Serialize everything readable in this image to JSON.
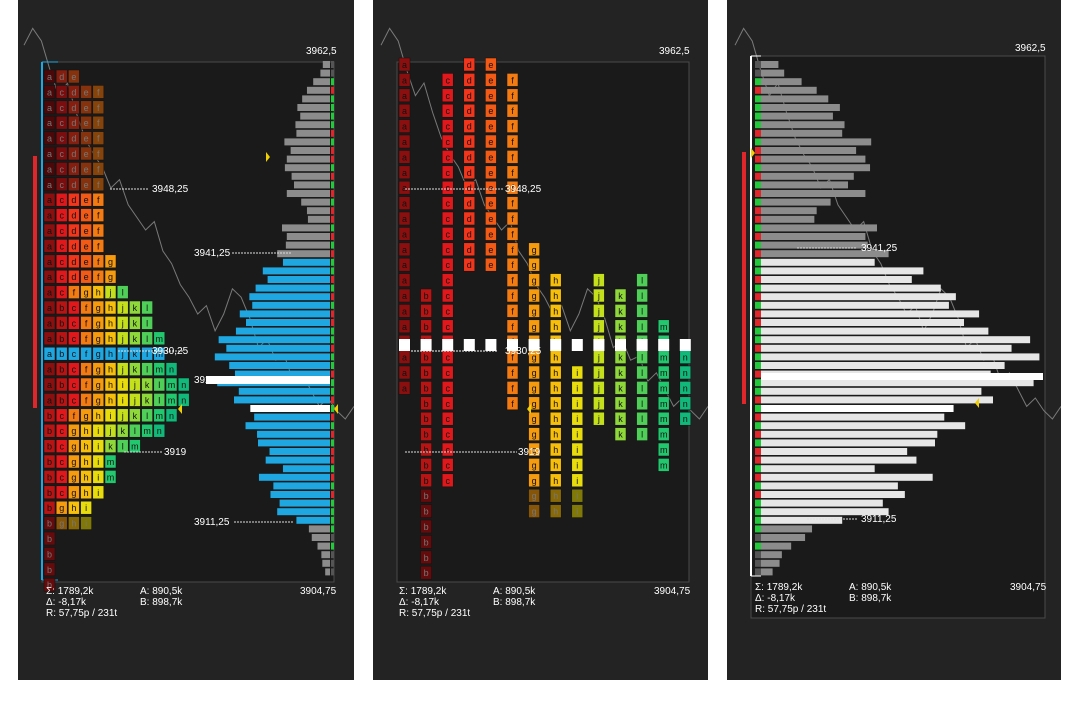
{
  "colors": {
    "background": "#232323",
    "chart_bg": "#1a1a1a",
    "value_area": "#1ea7e1",
    "poc": "#ffffff",
    "profile_gray": "#8c8c8c",
    "profile_light": "#e6e6e6",
    "buy": "#22c93a",
    "sell": "#e0262b",
    "initial_balance": "#e0262b",
    "price_line": "#9a9a9a"
  },
  "price_labels": {
    "top": "3962,5",
    "bottom": "3904,75",
    "level_1": "3948,25",
    "level_2": "3941,25",
    "level_3": "3930,25",
    "level_4": "3919",
    "level_5": "3911,25",
    "poc": "3925"
  },
  "stats": {
    "sum": "Σ: 1789,2k",
    "delta": "Δ: -8,17k",
    "range": "R: 57,75p / 231t",
    "ask": "A: 890,5k",
    "bid": "B: 898,7k"
  },
  "panels": [
    {
      "name": "tpo-profile-stacked",
      "mode": "stacked"
    },
    {
      "name": "tpo-profile-split",
      "mode": "split"
    },
    {
      "name": "volume-profile",
      "mode": "volume"
    }
  ],
  "tpo_columns": [
    {
      "letter": "a",
      "from": 0,
      "to": 21
    },
    {
      "letter": "b",
      "from": 15,
      "to": 33
    },
    {
      "letter": "c",
      "from": 1,
      "to": 27
    },
    {
      "letter": "d",
      "from": 0,
      "to": 13
    },
    {
      "letter": "e",
      "from": 0,
      "to": 13
    },
    {
      "letter": "f",
      "from": 1,
      "to": 22
    },
    {
      "letter": "g",
      "from": 12,
      "to": 29
    },
    {
      "letter": "h",
      "from": 14,
      "to": 29
    },
    {
      "letter": "i",
      "from": 20,
      "to": 29
    },
    {
      "letter": "j",
      "from": 14,
      "to": 23
    },
    {
      "letter": "k",
      "from": 15,
      "to": 24
    },
    {
      "letter": "l",
      "from": 14,
      "to": 24
    },
    {
      "letter": "m",
      "from": 17,
      "to": 26
    },
    {
      "letter": "n",
      "from": 19,
      "to": 23
    }
  ],
  "volume_profile": [
    {
      "v": 15,
      "d": 0
    },
    {
      "v": 20,
      "d": 0
    },
    {
      "v": 35,
      "d": 1
    },
    {
      "v": 48,
      "d": 2
    },
    {
      "v": 58,
      "d": 1
    },
    {
      "v": 68,
      "d": 1
    },
    {
      "v": 62,
      "d": 1
    },
    {
      "v": 72,
      "d": 1
    },
    {
      "v": 70,
      "d": 2
    },
    {
      "v": 95,
      "d": 1
    },
    {
      "v": 82,
      "d": 2
    },
    {
      "v": 90,
      "d": 2
    },
    {
      "v": 94,
      "d": 1
    },
    {
      "v": 80,
      "d": 2
    },
    {
      "v": 75,
      "d": 1
    },
    {
      "v": 90,
      "d": 2
    },
    {
      "v": 60,
      "d": 1
    },
    {
      "v": 48,
      "d": 2
    },
    {
      "v": 46,
      "d": 2
    },
    {
      "v": 100,
      "d": 1
    },
    {
      "v": 90,
      "d": 2
    },
    {
      "v": 92,
      "d": 1
    },
    {
      "v": 110,
      "d": 2
    },
    {
      "v": 98,
      "d": 1
    },
    {
      "v": 140,
      "d": 1
    },
    {
      "v": 130,
      "d": 2
    },
    {
      "v": 155,
      "d": 1
    },
    {
      "v": 168,
      "d": 2
    },
    {
      "v": 162,
      "d": 1
    },
    {
      "v": 188,
      "d": 2
    },
    {
      "v": 175,
      "d": 2
    },
    {
      "v": 196,
      "d": 1
    },
    {
      "v": 232,
      "d": 1
    },
    {
      "v": 216,
      "d": 2
    },
    {
      "v": 240,
      "d": 1
    },
    {
      "v": 210,
      "d": 1
    },
    {
      "v": 198,
      "d": 2
    },
    {
      "v": 235,
      "d": 1
    },
    {
      "v": 190,
      "d": 1
    },
    {
      "v": 200,
      "d": 2
    },
    {
      "v": 166,
      "d": 1
    },
    {
      "v": 158,
      "d": 2
    },
    {
      "v": 176,
      "d": 1
    },
    {
      "v": 152,
      "d": 2
    },
    {
      "v": 150,
      "d": 1
    },
    {
      "v": 126,
      "d": 2
    },
    {
      "v": 134,
      "d": 2
    },
    {
      "v": 98,
      "d": 1
    },
    {
      "v": 148,
      "d": 2
    },
    {
      "v": 118,
      "d": 1
    },
    {
      "v": 124,
      "d": 2
    },
    {
      "v": 105,
      "d": 1
    },
    {
      "v": 110,
      "d": 1
    },
    {
      "v": 70,
      "d": 1
    },
    {
      "v": 44,
      "d": 1
    },
    {
      "v": 38,
      "d": 0
    },
    {
      "v": 26,
      "d": 1
    },
    {
      "v": 18,
      "d": 0
    },
    {
      "v": 16,
      "d": 0
    },
    {
      "v": 10,
      "d": 0
    }
  ],
  "price_line": [
    0.06,
    0.02,
    0.05,
    0.12,
    0.18,
    0.15,
    0.22,
    0.28,
    0.32,
    0.35,
    0.4,
    0.38,
    0.44,
    0.47,
    0.5,
    0.48,
    0.55,
    0.58,
    0.63,
    0.66,
    0.7,
    0.68,
    0.74,
    0.7,
    0.64,
    0.66,
    0.71,
    0.78,
    0.76,
    0.81,
    0.8,
    0.86,
    0.84,
    0.88,
    0.92,
    0.9,
    0.93,
    0.95,
    0.92
  ]
}
